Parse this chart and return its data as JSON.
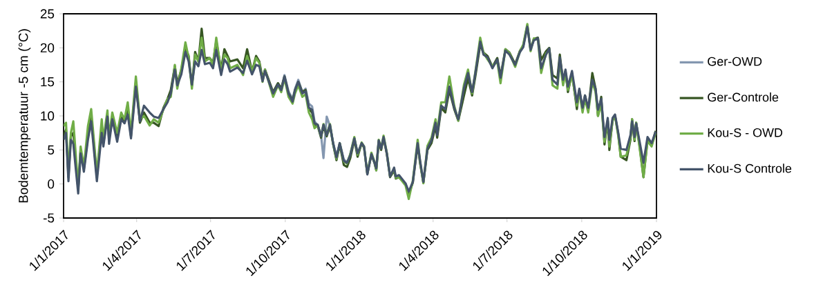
{
  "chart_data": {
    "type": "line",
    "ylabel": "Bodemtemperatuur -5 cm (°C)",
    "xlim": [
      "2017-01-01",
      "2019-01-01"
    ],
    "xticks": [
      {
        "value": "2017-01-01",
        "label": "1/1/2017"
      },
      {
        "value": "2017-04-01",
        "label": "1/4/2017"
      },
      {
        "value": "2017-07-01",
        "label": "1/7/2017"
      },
      {
        "value": "2017-10-01",
        "label": "1/10/2017"
      },
      {
        "value": "2018-01-01",
        "label": "1/1/2018"
      },
      {
        "value": "2018-04-01",
        "label": "1/4/2018"
      },
      {
        "value": "2018-07-01",
        "label": "1/7/2018"
      },
      {
        "value": "2018-10-01",
        "label": "1/10/2018"
      },
      {
        "value": "2019-01-01",
        "label": "1/1/2019"
      }
    ],
    "ylim": [
      -5,
      25
    ],
    "yticks": [
      -5,
      0,
      5,
      10,
      15,
      20,
      25
    ],
    "legend": "right",
    "x": [
      "2017-01-01",
      "2017-01-04",
      "2017-01-07",
      "2017-01-10",
      "2017-01-13",
      "2017-01-19",
      "2017-01-22",
      "2017-01-26",
      "2017-01-31",
      "2017-02-04",
      "2017-02-11",
      "2017-02-17",
      "2017-02-19",
      "2017-02-24",
      "2017-02-26",
      "2017-03-02",
      "2017-03-08",
      "2017-03-13",
      "2017-03-17",
      "2017-03-21",
      "2017-03-25",
      "2017-03-31",
      "2017-04-05",
      "2017-04-10",
      "2017-04-17",
      "2017-04-22",
      "2017-04-28",
      "2017-05-04",
      "2017-05-09",
      "2017-05-13",
      "2017-05-18",
      "2017-05-21",
      "2017-05-26",
      "2017-05-31",
      "2017-06-04",
      "2017-06-08",
      "2017-06-12",
      "2017-06-16",
      "2017-06-20",
      "2017-06-24",
      "2017-06-30",
      "2017-07-04",
      "2017-07-08",
      "2017-07-14",
      "2017-07-18",
      "2017-07-22",
      "2017-07-25",
      "2017-08-03",
      "2017-08-10",
      "2017-08-15",
      "2017-08-21",
      "2017-08-26",
      "2017-08-30",
      "2017-09-03",
      "2017-09-06",
      "2017-09-16",
      "2017-09-22",
      "2017-09-26",
      "2017-09-30",
      "2017-10-05",
      "2017-10-10",
      "2017-10-13",
      "2017-10-17",
      "2017-10-22",
      "2017-10-26",
      "2017-10-30",
      "2017-11-03",
      "2017-11-06",
      "2017-11-10",
      "2017-11-14",
      "2017-11-17",
      "2017-11-21",
      "2017-11-25",
      "2017-11-29",
      "2017-12-03",
      "2017-12-07",
      "2017-12-12",
      "2017-12-16",
      "2017-12-20",
      "2017-12-25",
      "2017-12-29",
      "2018-01-03",
      "2018-01-06",
      "2018-01-10",
      "2018-01-15",
      "2018-01-19",
      "2018-01-21",
      "2018-01-24",
      "2018-01-27",
      "2018-01-30",
      "2018-02-03",
      "2018-02-07",
      "2018-02-12",
      "2018-02-14",
      "2018-02-18",
      "2018-02-26",
      "2018-03-02",
      "2018-03-07",
      "2018-03-13",
      "2018-03-16",
      "2018-03-20",
      "2018-03-25",
      "2018-03-30",
      "2018-04-04",
      "2018-04-06",
      "2018-04-11",
      "2018-04-16",
      "2018-04-21",
      "2018-04-27",
      "2018-05-02",
      "2018-05-09",
      "2018-05-14",
      "2018-05-19",
      "2018-05-23",
      "2018-05-29",
      "2018-06-02",
      "2018-06-07",
      "2018-06-13",
      "2018-06-19",
      "2018-06-23",
      "2018-06-29",
      "2018-07-04",
      "2018-07-11",
      "2018-07-17",
      "2018-07-21",
      "2018-07-26",
      "2018-07-30",
      "2018-08-03",
      "2018-08-08",
      "2018-08-12",
      "2018-08-18",
      "2018-08-22",
      "2018-08-26",
      "2018-09-01",
      "2018-09-04",
      "2018-09-08",
      "2018-09-11",
      "2018-09-14",
      "2018-09-19",
      "2018-09-25",
      "2018-09-28",
      "2018-10-02",
      "2018-10-05",
      "2018-10-09",
      "2018-10-14",
      "2018-10-18",
      "2018-10-21",
      "2018-10-25",
      "2018-10-29",
      "2018-11-02",
      "2018-11-04",
      "2018-11-08",
      "2018-11-11",
      "2018-11-15",
      "2018-11-18",
      "2018-11-25",
      "2018-11-30",
      "2018-12-02",
      "2018-12-05",
      "2018-12-07",
      "2018-12-11",
      "2018-12-16",
      "2018-12-21",
      "2018-12-26",
      "2018-12-31"
    ],
    "series": [
      {
        "name": "Ger-OWD",
        "color": "#8497b0",
        "x": [
          "2017-09-16",
          "2017-09-22",
          "2017-09-26",
          "2017-09-30",
          "2017-10-05",
          "2017-10-10",
          "2017-10-13",
          "2017-10-17",
          "2017-10-22",
          "2017-10-26",
          "2017-10-30",
          "2017-11-03",
          "2017-11-06",
          "2017-11-10",
          "2017-11-14",
          "2017-11-17",
          "2017-11-21",
          "2017-11-25",
          "2017-11-29",
          "2017-12-03",
          "2017-12-07",
          "2017-12-12",
          "2017-12-16",
          "2017-12-20",
          "2017-12-25",
          "2017-12-29"
        ],
        "values": [
          13.5,
          14.8,
          14.0,
          16.0,
          13.6,
          12.5,
          14.0,
          15.3,
          13.5,
          14.0,
          11.8,
          11.4,
          9.2,
          8.6,
          7.2,
          3.8,
          9.9,
          8.5,
          6.0,
          4.0,
          6.0,
          3.6,
          3.2,
          4.3,
          6.7,
          4.6
        ]
      },
      {
        "name": "Ger-Controle",
        "color": "#375623",
        "values": [
          7.0,
          8.0,
          1.0,
          7.0,
          7.5,
          -0.8,
          5.0,
          2.2,
          7.0,
          10.0,
          1.0,
          8.5,
          6.0,
          10.0,
          6.5,
          9.8,
          7.0,
          9.8,
          9.2,
          11.0,
          7.0,
          15.0,
          9.0,
          10.5,
          9.0,
          9.0,
          8.5,
          11.2,
          12.5,
          13.8,
          17.3,
          14.8,
          16.8,
          20.0,
          18.8,
          14.4,
          19.4,
          18.0,
          22.8,
          18.5,
          18.5,
          17.8,
          21.0,
          16.8,
          19.8,
          18.8,
          18.0,
          18.3,
          17.0,
          19.8,
          16.5,
          18.8,
          18.0,
          15.5,
          16.8,
          13.5,
          14.8,
          14.0,
          15.8,
          13.3,
          12.3,
          13.8,
          15.0,
          13.5,
          13.8,
          11.0,
          10.5,
          8.5,
          8.5,
          6.8,
          8.5,
          7.0,
          8.5,
          5.8,
          3.5,
          5.8,
          2.8,
          2.5,
          3.8,
          6.5,
          4.0,
          6.0,
          5.3,
          1.5,
          4.3,
          3.0,
          2.0,
          6.2,
          5.0,
          6.8,
          4.4,
          1.0,
          2.0,
          0.8,
          1.0,
          0.0,
          -1.5,
          0.2,
          5.8,
          3.0,
          0.2,
          5.0,
          6.0,
          8.5,
          6.8,
          11.2,
          10.5,
          13.8,
          11.0,
          9.3,
          13.0,
          15.5,
          13.0,
          15.8,
          20.5,
          19.3,
          18.8,
          17.2,
          18.5,
          15.8,
          19.8,
          19.3,
          17.6,
          19.6,
          20.3,
          23.3,
          19.8,
          21.3,
          21.5,
          18.2,
          19.5,
          20.0,
          16.0,
          15.5,
          19.0,
          15.0,
          16.5,
          13.5,
          16.3,
          11.0,
          13.8,
          11.0,
          13.0,
          10.8,
          16.3,
          14.0,
          10.0,
          12.8,
          5.8,
          9.3,
          5.0,
          9.5,
          10.0,
          7.3,
          4.0,
          3.5,
          6.5,
          9.5,
          6.3,
          9.0,
          5.8,
          1.0,
          6.5,
          5.7,
          7.8
        ]
      },
      {
        "name": "Kou-S - OWD",
        "color": "#70ad47",
        "values": [
          8.5,
          9.0,
          1.5,
          7.5,
          9.2,
          -0.5,
          5.5,
          2.5,
          8.5,
          11.0,
          1.5,
          9.5,
          6.5,
          10.8,
          7.0,
          10.5,
          7.5,
          10.5,
          9.5,
          12.0,
          7.5,
          15.8,
          9.5,
          10.0,
          8.6,
          9.5,
          9.0,
          11.0,
          12.5,
          12.8,
          17.5,
          14.0,
          17.0,
          20.8,
          18.5,
          14.0,
          19.0,
          18.0,
          21.5,
          18.0,
          18.5,
          17.5,
          21.5,
          16.5,
          19.0,
          18.5,
          17.0,
          17.5,
          16.0,
          18.8,
          16.5,
          18.5,
          17.8,
          15.0,
          16.8,
          12.8,
          14.5,
          13.5,
          15.5,
          12.8,
          11.8,
          13.3,
          14.5,
          12.8,
          13.2,
          10.5,
          9.5,
          8.2,
          8.6,
          7.0,
          8.8,
          7.3,
          8.8,
          5.8,
          3.7,
          6.0,
          3.3,
          3.0,
          4.4,
          6.9,
          4.3,
          6.1,
          5.5,
          1.5,
          4.6,
          3.2,
          2.0,
          6.5,
          5.3,
          7.1,
          4.6,
          1.2,
          2.2,
          0.9,
          1.0,
          -0.2,
          -2.2,
          0.5,
          6.5,
          3.2,
          0.1,
          5.6,
          6.8,
          9.5,
          7.7,
          12.0,
          12.0,
          15.8,
          11.5,
          9.3,
          14.6,
          16.8,
          13.3,
          16.5,
          21.5,
          19.3,
          18.3,
          17.3,
          18.0,
          14.8,
          19.8,
          19.2,
          17.2,
          19.5,
          20.5,
          23.5,
          19.5,
          21.4,
          21.2,
          16.3,
          19.2,
          19.6,
          14.5,
          14.0,
          18.0,
          14.5,
          16.3,
          13.8,
          16.0,
          11.5,
          13.5,
          10.5,
          12.5,
          10.5,
          15.0,
          13.5,
          10.0,
          11.8,
          6.2,
          9.3,
          5.5,
          9.3,
          10.0,
          7.0,
          4.0,
          4.2,
          6.8,
          9.5,
          6.5,
          9.0,
          5.5,
          1.0,
          6.3,
          5.5,
          7.5
        ]
      },
      {
        "name": "Kou-S Controle",
        "color": "#44546a",
        "values": [
          6.5,
          7.5,
          0.4,
          6.5,
          5.9,
          -1.4,
          4.5,
          1.8,
          6.5,
          9.2,
          0.4,
          7.5,
          5.5,
          9.9,
          5.9,
          9.5,
          6.2,
          9.5,
          8.9,
          10.2,
          6.7,
          14.3,
          9.2,
          11.5,
          10.5,
          9.9,
          9.7,
          11.0,
          12.0,
          13.3,
          16.8,
          14.5,
          16.1,
          19.4,
          18.0,
          14.6,
          18.0,
          17.3,
          19.7,
          17.6,
          17.8,
          17.0,
          19.7,
          16.0,
          18.3,
          17.6,
          16.5,
          17.1,
          16.3,
          18.1,
          16.1,
          17.5,
          17.3,
          15.1,
          16.6,
          13.3,
          14.6,
          13.8,
          15.8,
          13.3,
          12.1,
          13.8,
          15.0,
          13.3,
          13.6,
          11.2,
          10.9,
          8.9,
          8.7,
          7.0,
          8.7,
          7.2,
          8.7,
          5.9,
          3.9,
          6.0,
          3.4,
          3.1,
          4.2,
          6.7,
          4.5,
          6.0,
          5.5,
          1.4,
          4.4,
          3.1,
          2.3,
          6.4,
          5.2,
          6.9,
          4.5,
          1.1,
          2.4,
          1.1,
          1.3,
          0.1,
          -1.1,
          0.3,
          6.0,
          3.4,
          0.3,
          5.2,
          6.4,
          9.0,
          7.2,
          11.5,
          11.0,
          14.3,
          11.2,
          9.5,
          14.1,
          16.3,
          13.5,
          16.3,
          20.9,
          19.0,
          18.6,
          17.0,
          18.3,
          15.6,
          19.6,
          19.0,
          17.5,
          19.4,
          20.1,
          23.1,
          19.7,
          21.1,
          21.4,
          17.0,
          19.0,
          19.9,
          15.3,
          14.6,
          18.6,
          15.3,
          16.8,
          14.3,
          16.6,
          12.0,
          14.0,
          11.2,
          13.0,
          11.2,
          15.3,
          14.0,
          10.9,
          12.5,
          6.9,
          9.7,
          6.5,
          9.7,
          10.2,
          7.5,
          5.2,
          5.0,
          7.2,
          9.2,
          6.9,
          8.9,
          6.4,
          3.1,
          6.9,
          6.0,
          7.7
        ]
      }
    ]
  }
}
